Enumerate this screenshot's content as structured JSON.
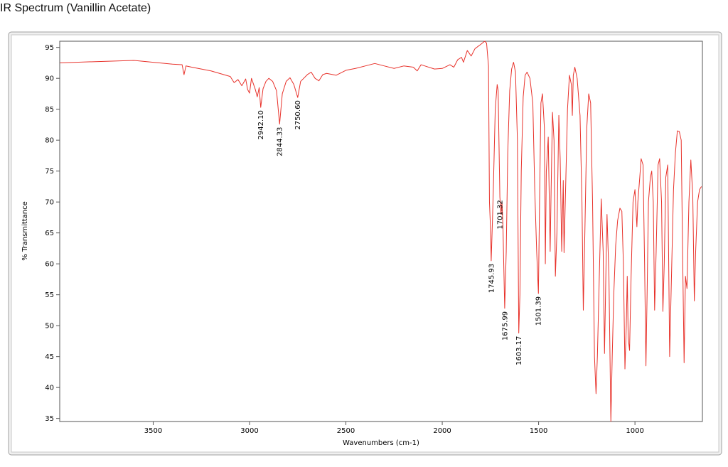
{
  "chart_data": {
    "type": "line",
    "title": "IR Spectrum (Vanillin Acetate)",
    "x_label": "Wavenumbers (cm-1)",
    "y_label": "% Transmittance",
    "color": "#e8322b",
    "xlim": [
      3985,
      650
    ],
    "ylim": [
      34.5,
      96
    ],
    "xticks": [
      3500,
      3000,
      2500,
      2000,
      1500,
      1000
    ],
    "yticks": [
      35,
      40,
      45,
      50,
      55,
      60,
      65,
      70,
      75,
      80,
      85,
      90,
      95
    ],
    "x": [
      3983,
      3900,
      3800,
      3700,
      3600,
      3500,
      3400,
      3350,
      3340,
      3330,
      3300,
      3200,
      3100,
      3080,
      3060,
      3040,
      3020,
      3010,
      3000,
      2990,
      2970,
      2960,
      2950,
      2942,
      2930,
      2915,
      2900,
      2880,
      2860,
      2844,
      2830,
      2810,
      2790,
      2770,
      2750,
      2735,
      2700,
      2680,
      2660,
      2640,
      2620,
      2600,
      2550,
      2500,
      2450,
      2400,
      2350,
      2300,
      2250,
      2200,
      2150,
      2130,
      2110,
      2080,
      2040,
      2000,
      1960,
      1940,
      1920,
      1900,
      1890,
      1870,
      1850,
      1830,
      1800,
      1780,
      1770,
      1760,
      1755,
      1750,
      1746,
      1740,
      1735,
      1725,
      1715,
      1710,
      1701,
      1695,
      1690,
      1685,
      1676,
      1668,
      1660,
      1650,
      1640,
      1630,
      1620,
      1610,
      1603,
      1597,
      1590,
      1580,
      1570,
      1560,
      1545,
      1530,
      1520,
      1510,
      1501,
      1495,
      1488,
      1480,
      1470,
      1465,
      1460,
      1450,
      1440,
      1435,
      1428,
      1420,
      1413,
      1405,
      1395,
      1388,
      1380,
      1372,
      1368,
      1360,
      1350,
      1340,
      1330,
      1325,
      1320,
      1312,
      1300,
      1285,
      1275,
      1268,
      1260,
      1250,
      1240,
      1230,
      1220,
      1210,
      1202,
      1195,
      1185,
      1175,
      1165,
      1158,
      1150,
      1145,
      1135,
      1125,
      1118,
      1110,
      1100,
      1090,
      1078,
      1068,
      1060,
      1052,
      1045,
      1040,
      1035,
      1028,
      1020,
      1010,
      1000,
      990,
      985,
      975,
      968,
      958,
      950,
      943,
      937,
      930,
      920,
      913,
      905,
      898,
      890,
      880,
      872,
      862,
      855,
      848,
      840,
      830,
      820,
      812,
      800,
      790,
      780,
      770,
      760,
      752,
      745,
      738,
      730,
      720,
      710,
      700,
      692,
      685,
      675,
      665,
      655
    ],
    "values": [
      92.5,
      92.6,
      92.7,
      92.8,
      92.9,
      92.6,
      92.3,
      92.2,
      90.6,
      92.0,
      91.8,
      91.2,
      90.3,
      89.3,
      89.8,
      88.8,
      89.9,
      88.2,
      87.6,
      90.0,
      88.2,
      87.0,
      88.5,
      85.3,
      88.3,
      89.5,
      90.0,
      89.5,
      88.0,
      82.6,
      87.5,
      89.5,
      90.1,
      89.0,
      86.9,
      89.5,
      90.6,
      91.0,
      90.0,
      89.6,
      90.6,
      90.8,
      90.5,
      91.3,
      91.6,
      92.0,
      92.4,
      92.0,
      91.6,
      92.0,
      91.8,
      91.2,
      92.2,
      91.9,
      91.5,
      91.6,
      92.2,
      91.8,
      93.0,
      93.4,
      92.6,
      94.5,
      93.6,
      94.8,
      95.5,
      96.0,
      95.7,
      92.0,
      70.0,
      66.0,
      60.5,
      66.5,
      72.0,
      85.0,
      89.0,
      88.0,
      70.8,
      68.0,
      70.0,
      66.0,
      52.8,
      62.0,
      78.0,
      88.0,
      91.5,
      92.6,
      91.0,
      80.0,
      48.8,
      55.0,
      75.0,
      87.0,
      90.5,
      91.0,
      90.0,
      86.0,
      72.0,
      62.0,
      55.2,
      70.0,
      86.0,
      87.5,
      82.0,
      60.0,
      75.0,
      80.5,
      62.0,
      72.0,
      84.5,
      80.0,
      58.0,
      65.0,
      84.0,
      77.0,
      62.0,
      73.5,
      61.8,
      72.0,
      85.0,
      90.5,
      89.0,
      84.0,
      90.5,
      91.8,
      90.0,
      84.0,
      70.0,
      52.5,
      65.0,
      82.0,
      87.5,
      86.0,
      70.0,
      45.0,
      39.0,
      45.0,
      58.0,
      70.5,
      62.0,
      45.5,
      60.0,
      68.0,
      58.0,
      34.5,
      45.0,
      55.0,
      63.0,
      67.0,
      69.0,
      68.5,
      60.0,
      43.0,
      50.0,
      58.0,
      48.0,
      46.0,
      58.0,
      70.0,
      72.0,
      66.0,
      70.0,
      74.0,
      77.0,
      76.0,
      60.0,
      43.5,
      55.0,
      70.0,
      74.0,
      75.0,
      70.0,
      52.5,
      62.0,
      76.0,
      77.0,
      70.0,
      52.3,
      60.0,
      74.0,
      76.0,
      45.0,
      56.0,
      72.0,
      78.0,
      81.5,
      81.4,
      80.0,
      60.0,
      44.0,
      58.0,
      56.0,
      70.0,
      76.8,
      71.0,
      54.0,
      62.0,
      70.0,
      72.0,
      72.5
    ],
    "annotations": [
      {
        "label": "2942.10",
        "x": 2942.1
      },
      {
        "label": "2844.33",
        "x": 2844.33
      },
      {
        "label": "2750.60",
        "x": 2750.6
      },
      {
        "label": "1745.93",
        "x": 1745.93
      },
      {
        "label": "1701.32",
        "x": 1701.32
      },
      {
        "label": "1675.99",
        "x": 1675.99
      },
      {
        "label": "1603.17",
        "x": 1603.17
      },
      {
        "label": "1501.39",
        "x": 1501.39
      }
    ]
  }
}
